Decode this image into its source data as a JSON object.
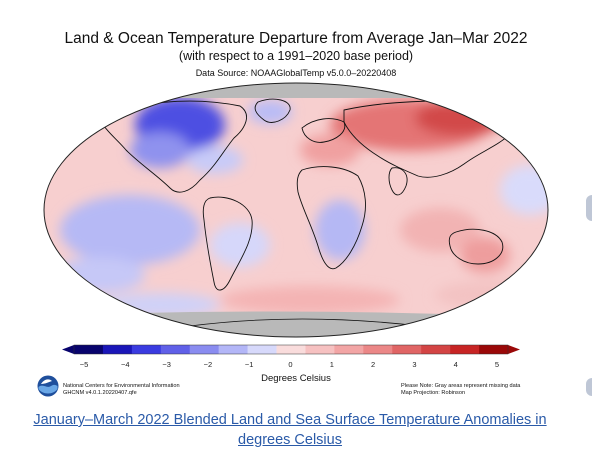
{
  "figure": {
    "title": "Land & Ocean Temperature Departure from Average Jan–Mar 2022",
    "subtitle": "(with respect to a 1991–2020 base period)",
    "source": "Data Source: NOAAGlobalTemp v5.0.0–20220408",
    "projection": "Robinson",
    "missing_color": "#b9b9b9",
    "scale": {
      "ticks": [
        "−5",
        "−4",
        "−3",
        "−2",
        "−1",
        "0",
        "1",
        "2",
        "3",
        "4",
        "5"
      ],
      "unit_label": "Degrees Celsius",
      "colors": [
        "#08036d",
        "#1a16b8",
        "#3a3be0",
        "#6060e8",
        "#8a8cf0",
        "#b3b6f7",
        "#d7d9fb",
        "#f9dcdc",
        "#f6c1c1",
        "#f2a5a5",
        "#eb8787",
        "#e06565",
        "#d34444",
        "#c72424",
        "#9a0808"
      ]
    },
    "regions": [
      {
        "name": "north-america-north",
        "level": -3
      },
      {
        "name": "greenland",
        "level": -1
      },
      {
        "name": "europe",
        "level": 2
      },
      {
        "name": "russia-siberia",
        "level": 3
      },
      {
        "name": "central-africa",
        "level": -1
      },
      {
        "name": "east-pacific",
        "level": -2
      },
      {
        "name": "south-atlantic",
        "level": 1
      },
      {
        "name": "antarctica",
        "level": "missing"
      }
    ]
  },
  "footer": {
    "logo": "noaa-logo-icon",
    "left_line1": "National Centers for Environmental Information",
    "left_line2": "GHCNM v4.0.1.20220407.qfe",
    "right_line1": "Please Note: Gray areas represent missing data",
    "right_line2": "Map Projection: Robinson"
  },
  "caption": {
    "line1": "January–March 2022 Blended Land and Sea Surface Temperature Anomalies in",
    "line2": "degrees Celsius"
  }
}
